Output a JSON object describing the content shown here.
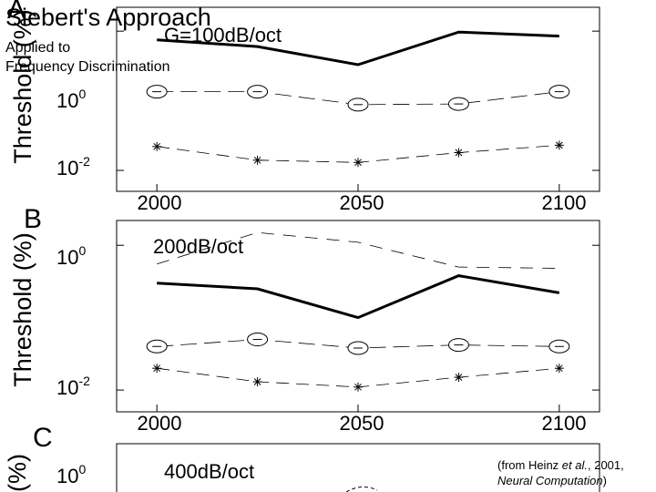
{
  "slide": {
    "title": "Siebert's Approach",
    "subtitle": "Applied to\nFrequency Discrimination",
    "credit": {
      "prefix": "(from Heinz ",
      "etal": "et al.",
      "middle": ", 2001,",
      "journal": "Neural Computation",
      "suffix": ")"
    }
  },
  "chart_data": [
    {
      "type": "line",
      "panel_letter": "A",
      "annotation": "G=100dB/oct",
      "ylabel": "Threshold (%)",
      "yscale": "log",
      "yticks": [
        {
          "value": 1,
          "label_base": "10",
          "label_exp": "0"
        },
        {
          "value": 0.01,
          "label_base": "10",
          "label_exp": "-2"
        }
      ],
      "x": [
        2000,
        2025,
        2050,
        2075,
        2100
      ],
      "xticks": [
        "2000",
        "2050",
        "2100"
      ],
      "xlim": [
        1990,
        2110
      ],
      "ylim": [
        0.005,
        2.2
      ],
      "series": [
        {
          "style": "thick",
          "values": [
            0.75,
            0.6,
            0.33,
            0.97,
            0.85
          ]
        },
        {
          "style": "circles",
          "values": [
            0.135,
            0.135,
            0.088,
            0.09,
            0.135
          ]
        },
        {
          "style": "stars",
          "values": [
            0.022,
            0.014,
            0.013,
            0.018,
            0.023
          ]
        }
      ]
    },
    {
      "type": "line",
      "panel_letter": "B",
      "annotation": "200dB/oct",
      "ylabel": "Threshold (%)",
      "yscale": "log",
      "yticks": [
        {
          "value": 1,
          "label_base": "10",
          "label_exp": "0"
        },
        {
          "value": 0.01,
          "label_base": "10",
          "label_exp": "-2"
        }
      ],
      "x": [
        2000,
        2025,
        2050,
        2075,
        2100
      ],
      "xticks": [
        "2000",
        "2050",
        "2100"
      ],
      "xlim": [
        1990,
        2110
      ],
      "ylim": [
        0.005,
        2.2
      ],
      "series": [
        {
          "style": "thin-dashed",
          "values": [
            0.55,
            1.5,
            1.1,
            0.5,
            0.48
          ]
        },
        {
          "style": "thick",
          "values": [
            0.3,
            0.25,
            0.1,
            0.38,
            0.22
          ]
        },
        {
          "style": "circles",
          "values": [
            0.04,
            0.05,
            0.038,
            0.042,
            0.04
          ]
        },
        {
          "style": "stars",
          "values": [
            0.02,
            0.013,
            0.011,
            0.015,
            0.02
          ]
        }
      ]
    },
    {
      "type": "line",
      "panel_letter": "C",
      "annotation": "400dB/oct",
      "ylabel": "(%)",
      "ytick": {
        "label_base": "10",
        "label_exp": "0"
      },
      "series": []
    }
  ],
  "colors": {
    "background": "#ffffff",
    "ink": "#000000",
    "grid": "#b0b0b0"
  }
}
